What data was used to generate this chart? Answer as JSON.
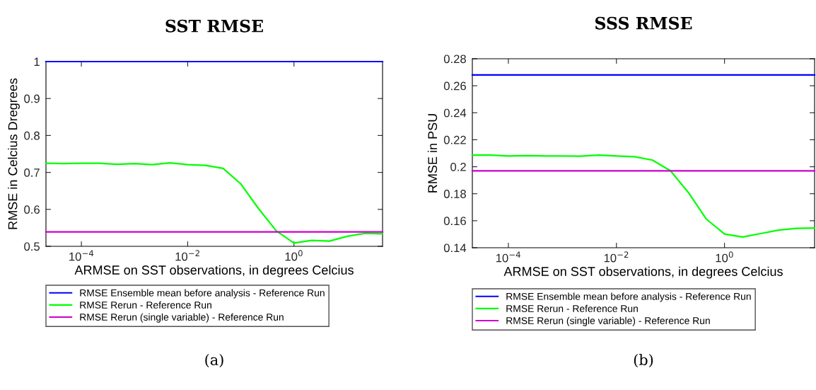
{
  "chart_data": [
    {
      "type": "line",
      "title": "SST RMSE",
      "xlabel": "ARMSE on SST observations, in degrees Celcius",
      "ylabel": "RMSE in Celcius Dregrees",
      "log": "x",
      "grid": false,
      "legend": "bottom",
      "marker": "none",
      "line_style": "solid",
      "xlim": [
        2.154e-05,
        46.42
      ],
      "xticks": [
        {
          "value": 0.0001,
          "label": "10$^{−4}$"
        },
        {
          "value": 0.01,
          "label": "10$^{−2}$"
        },
        {
          "value": 1,
          "label": "10$^{0}$"
        }
      ],
      "ylim": [
        0.5,
        1
      ],
      "yticks": [
        0.5,
        0.6,
        0.7,
        0.8,
        0.9,
        1
      ],
      "x": [
        2.154e-05,
        4.642e-05,
        0.0001,
        0.0002154,
        0.0004642,
        0.001,
        0.002154,
        0.004642,
        0.01,
        0.02154,
        0.04642,
        0.1,
        0.2154,
        0.4642,
        1,
        2.154,
        4.642,
        10,
        21.54,
        46.42
      ],
      "series": [
        {
          "name": "RMSE Rerun - Reference Run",
          "color": "#00ff00",
          "values": [
            0.725,
            0.724,
            0.725,
            0.725,
            0.722,
            0.724,
            0.721,
            0.726,
            0.721,
            0.719,
            0.711,
            0.669,
            0.602,
            0.542,
            0.509,
            0.516,
            0.514,
            0.527,
            0.535,
            0.534
          ]
        }
      ],
      "ref_lines": [
        {
          "axis": "y",
          "value": 1,
          "label": "RMSE Ensemble mean before analysis - Reference Run",
          "color": "#0000ff"
        },
        {
          "axis": "y",
          "value": 0.539,
          "label": "RMSE Rerun (single variable) - Reference Run",
          "color": "#cc00cc"
        }
      ],
      "annotations": [
        "(a)"
      ]
    },
    {
      "type": "line",
      "title": "SSS RMSE",
      "xlabel": "ARMSE on SST observations, in degrees Celcius",
      "ylabel": "RMSE in PSU",
      "log": "x",
      "grid": false,
      "legend": "bottom",
      "marker": "none",
      "line_style": "solid",
      "xlim": [
        2.154e-05,
        46.42
      ],
      "xticks": [
        {
          "value": 0.0001,
          "label": "10$^{−4}$"
        },
        {
          "value": 0.01,
          "label": "10$^{−2}$"
        },
        {
          "value": 1,
          "label": "10$^{0}$"
        }
      ],
      "ylim": [
        0.14,
        0.28
      ],
      "yticks": [
        0.14,
        0.16,
        0.18,
        0.2,
        0.22,
        0.24,
        0.26,
        0.28
      ],
      "x": [
        2.154e-05,
        4.642e-05,
        0.0001,
        0.0002154,
        0.0004642,
        0.001,
        0.002154,
        0.004642,
        0.01,
        0.02154,
        0.04642,
        0.1,
        0.2154,
        0.4642,
        1,
        2.154,
        4.642,
        10,
        21.54,
        46.42
      ],
      "series": [
        {
          "name": "RMSE Rerun - Reference Run",
          "color": "#00ff00",
          "values": [
            0.2086,
            0.2086,
            0.208,
            0.2082,
            0.208,
            0.208,
            0.2078,
            0.2086,
            0.208,
            0.2074,
            0.2049,
            0.197,
            0.1808,
            0.1611,
            0.1502,
            0.1479,
            0.1505,
            0.153,
            0.1544,
            0.1546
          ]
        }
      ],
      "ref_lines": [
        {
          "axis": "y",
          "value": 0.268,
          "label": "RMSE Ensemble mean before analysis - Reference Run",
          "color": "#0000ff"
        },
        {
          "axis": "y",
          "value": 0.1969,
          "label": "RMSE Rerun (single variable) - Reference Run",
          "color": "#cc00cc"
        }
      ],
      "annotations": [
        "(b)"
      ]
    }
  ]
}
